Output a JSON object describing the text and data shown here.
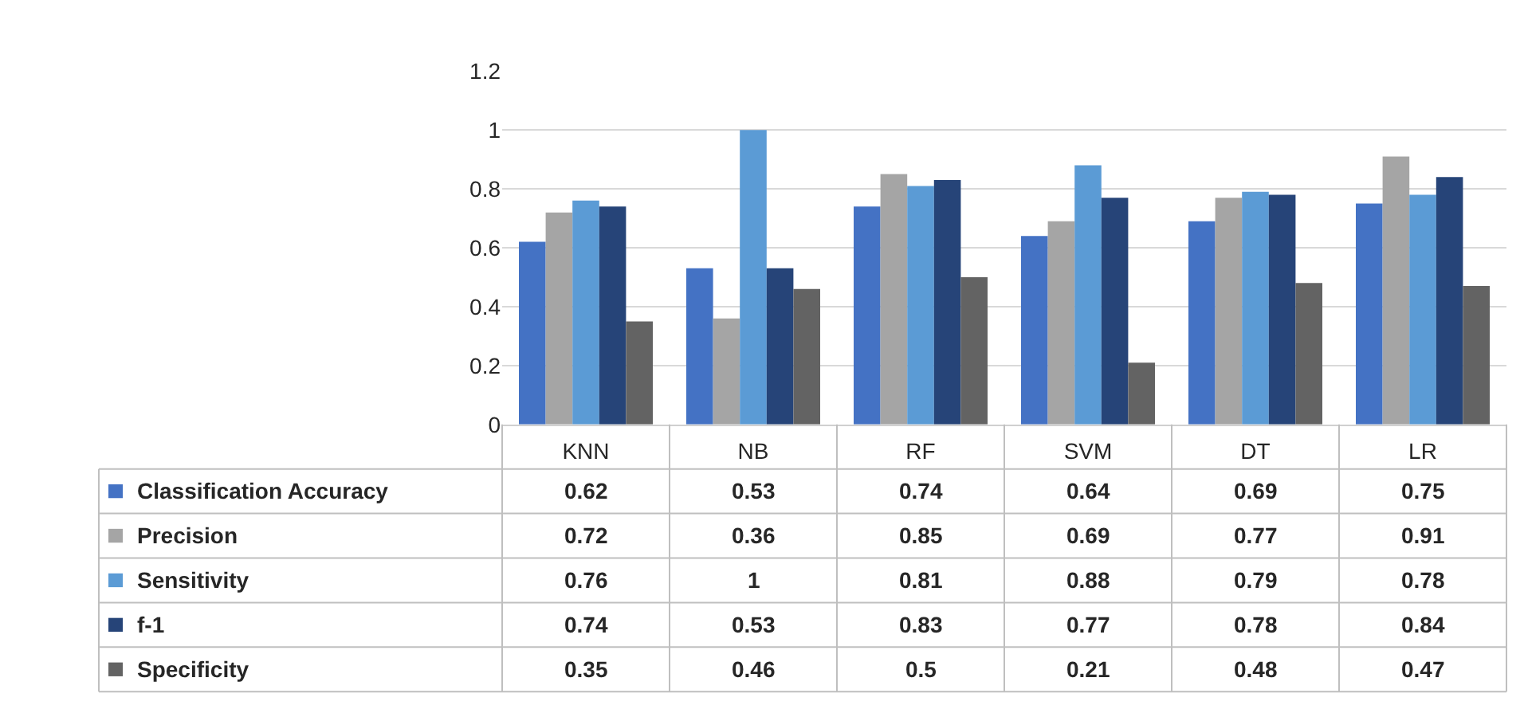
{
  "chart_data": {
    "type": "bar",
    "categories": [
      "KNN",
      "NB",
      "RF",
      "SVM",
      "DT",
      "LR"
    ],
    "series": [
      {
        "name": "Classification Accuracy",
        "color": "#4472c4",
        "values": [
          0.62,
          0.53,
          0.74,
          0.64,
          0.69,
          0.75
        ]
      },
      {
        "name": "Precision",
        "color": "#a5a5a5",
        "values": [
          0.72,
          0.36,
          0.85,
          0.69,
          0.77,
          0.91
        ]
      },
      {
        "name": "Sensitivity",
        "color": "#5b9bd5",
        "values": [
          0.76,
          1,
          0.81,
          0.88,
          0.79,
          0.78
        ]
      },
      {
        "name": "f-1",
        "color": "#264478",
        "values": [
          0.74,
          0.53,
          0.83,
          0.77,
          0.78,
          0.84
        ]
      },
      {
        "name": "Specificity",
        "color": "#636363",
        "values": [
          0.35,
          0.46,
          0.5,
          0.21,
          0.48,
          0.47
        ]
      }
    ],
    "ylim": [
      0,
      1.2
    ],
    "yticks": [
      0,
      0.2,
      0.4,
      0.6,
      0.8,
      1,
      1.2
    ],
    "grid": "y",
    "legend": "bottom left",
    "data_labels": true
  }
}
